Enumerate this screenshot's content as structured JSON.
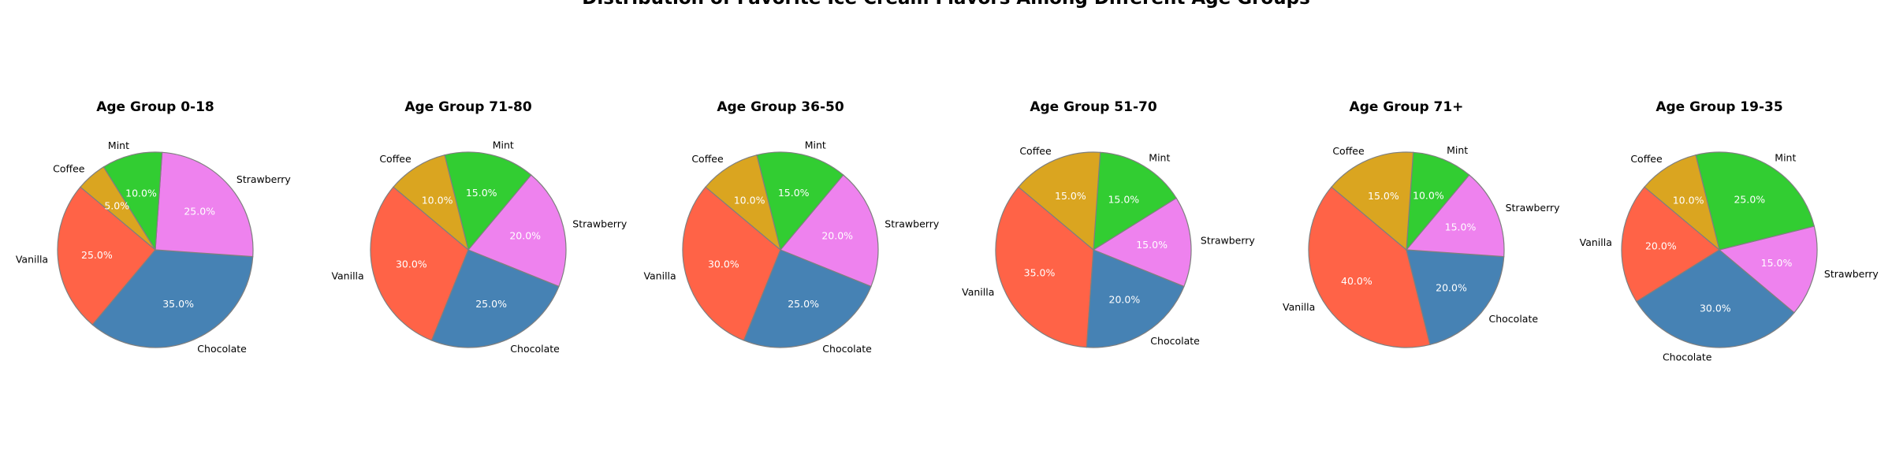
{
  "figure": {
    "title": "Distribution of Favorite Ice Cream Flavors Among Different Age Groups"
  },
  "chart_data": [
    {
      "type": "pie",
      "title": "Age Group 0-18",
      "slices": [
        {
          "label": "Vanilla",
          "value": 25.0,
          "pct": "25.0%",
          "color": "#FF6347"
        },
        {
          "label": "Chocolate",
          "value": 35.0,
          "pct": "35.0%",
          "color": "#4682B4"
        },
        {
          "label": "Strawberry",
          "value": 25.0,
          "pct": "25.0%",
          "color": "#EE82EE"
        },
        {
          "label": "Mint",
          "value": 10.0,
          "pct": "10.0%",
          "color": "#32CD32"
        },
        {
          "label": "Coffee",
          "value": 5.0,
          "pct": "5.0%",
          "color": "#DAA520"
        }
      ]
    },
    {
      "type": "pie",
      "title": "Age Group 71-80",
      "slices": [
        {
          "label": "Vanilla",
          "value": 30.0,
          "pct": "30.0%",
          "color": "#FF6347"
        },
        {
          "label": "Chocolate",
          "value": 25.0,
          "pct": "25.0%",
          "color": "#4682B4"
        },
        {
          "label": "Strawberry",
          "value": 20.0,
          "pct": "20.0%",
          "color": "#EE82EE"
        },
        {
          "label": "Mint",
          "value": 15.0,
          "pct": "15.0%",
          "color": "#32CD32"
        },
        {
          "label": "Coffee",
          "value": 10.0,
          "pct": "10.0%",
          "color": "#DAA520"
        }
      ]
    },
    {
      "type": "pie",
      "title": "Age Group 36-50",
      "slices": [
        {
          "label": "Vanilla",
          "value": 30.0,
          "pct": "30.0%",
          "color": "#FF6347"
        },
        {
          "label": "Chocolate",
          "value": 25.0,
          "pct": "25.0%",
          "color": "#4682B4"
        },
        {
          "label": "Strawberry",
          "value": 20.0,
          "pct": "20.0%",
          "color": "#EE82EE"
        },
        {
          "label": "Mint",
          "value": 15.0,
          "pct": "15.0%",
          "color": "#32CD32"
        },
        {
          "label": "Coffee",
          "value": 10.0,
          "pct": "10.0%",
          "color": "#DAA520"
        }
      ]
    },
    {
      "type": "pie",
      "title": "Age Group 51-70",
      "slices": [
        {
          "label": "Vanilla",
          "value": 35.0,
          "pct": "35.0%",
          "color": "#FF6347"
        },
        {
          "label": "Chocolate",
          "value": 20.0,
          "pct": "20.0%",
          "color": "#4682B4"
        },
        {
          "label": "Strawberry",
          "value": 15.0,
          "pct": "15.0%",
          "color": "#EE82EE"
        },
        {
          "label": "Mint",
          "value": 15.0,
          "pct": "15.0%",
          "color": "#32CD32"
        },
        {
          "label": "Coffee",
          "value": 15.0,
          "pct": "15.0%",
          "color": "#DAA520"
        }
      ]
    },
    {
      "type": "pie",
      "title": "Age Group 71+",
      "slices": [
        {
          "label": "Vanilla",
          "value": 40.0,
          "pct": "40.0%",
          "color": "#FF6347"
        },
        {
          "label": "Chocolate",
          "value": 20.0,
          "pct": "20.0%",
          "color": "#4682B4"
        },
        {
          "label": "Strawberry",
          "value": 15.0,
          "pct": "15.0%",
          "color": "#EE82EE"
        },
        {
          "label": "Mint",
          "value": 10.0,
          "pct": "10.0%",
          "color": "#32CD32"
        },
        {
          "label": "Coffee",
          "value": 15.0,
          "pct": "15.0%",
          "color": "#DAA520"
        }
      ]
    },
    {
      "type": "pie",
      "title": "Age Group 19-35",
      "slices": [
        {
          "label": "Vanilla",
          "value": 20.0,
          "pct": "20.0%",
          "color": "#FF6347"
        },
        {
          "label": "Chocolate",
          "value": 30.0,
          "pct": "30.0%",
          "color": "#4682B4"
        },
        {
          "label": "Strawberry",
          "value": 15.0,
          "pct": "15.0%",
          "color": "#EE82EE"
        },
        {
          "label": "Mint",
          "value": 25.0,
          "pct": "25.0%",
          "color": "#32CD32"
        },
        {
          "label": "Coffee",
          "value": 10.0,
          "pct": "10.0%",
          "color": "#DAA520"
        }
      ]
    }
  ]
}
